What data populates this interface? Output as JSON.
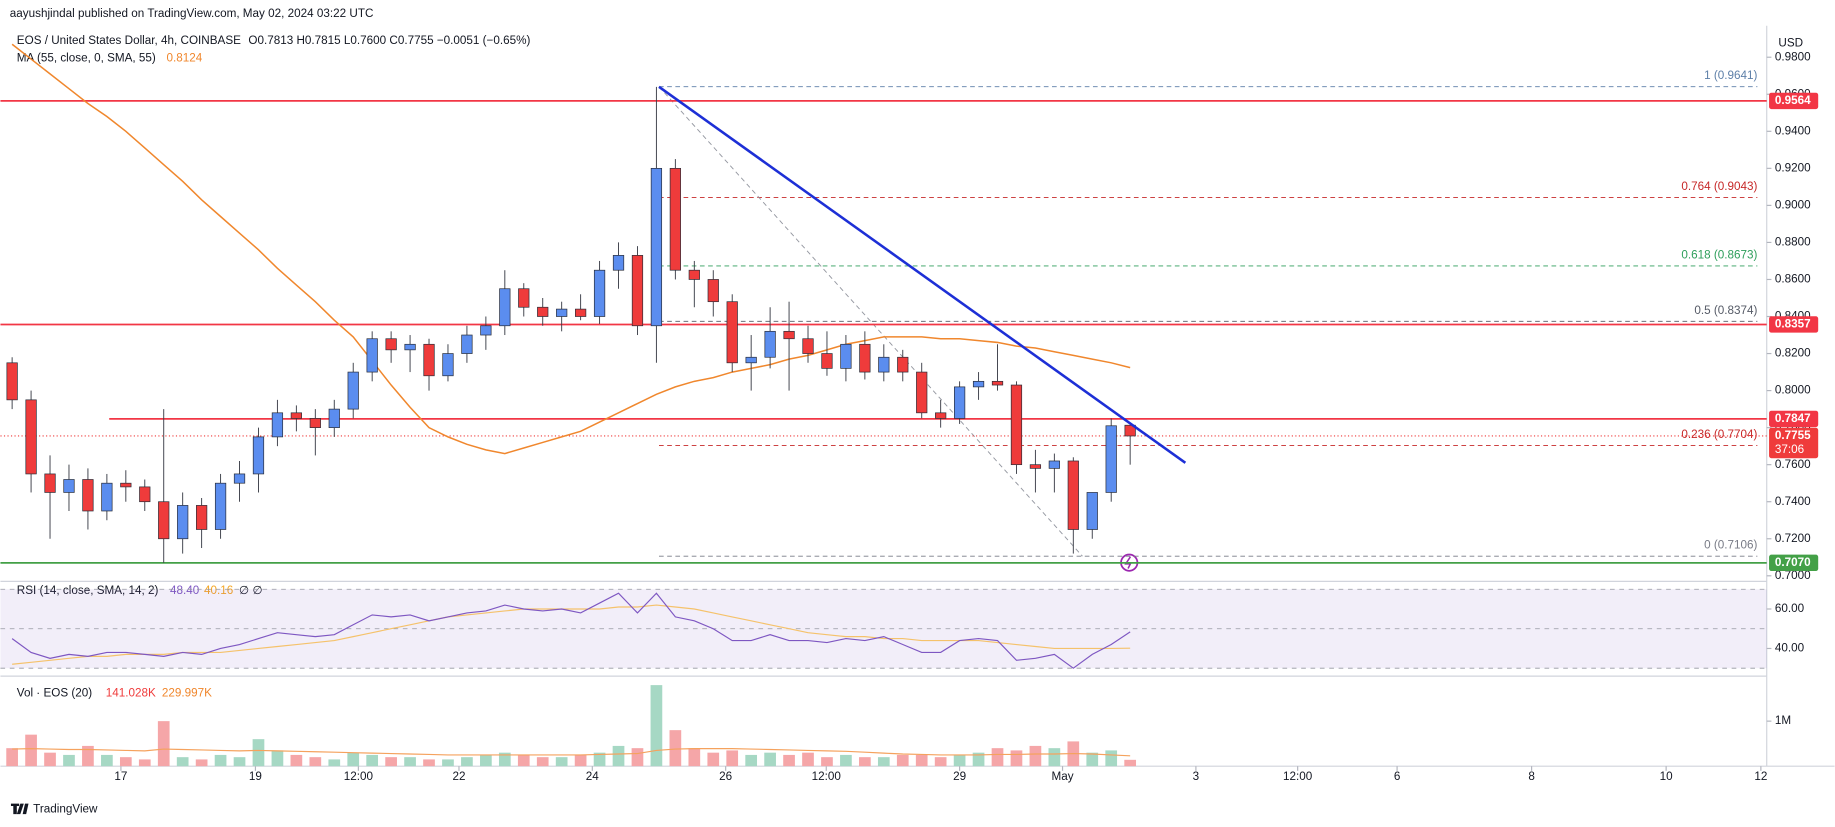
{
  "chart_data": {
    "type": "candlestick",
    "header": "aayushjindal published on TradingView.com, May 02, 2024 03:22 UTC",
    "symbol": "EOS / United States Dollar, 4h, COINBASE",
    "ohlc_text": "O0.7813 H0.7815 L0.7600 C0.7755 −0.0051 (−0.65%)",
    "ma_label": "MA (55, close, 0, SMA, 55)",
    "ma_legend_value": "0.8124",
    "currency": "USD",
    "up_color": "#5b8def",
    "down_color": "#ef3b3b",
    "ma_color": "#f0872d",
    "trend_color": "#1d2fd6",
    "open": [
      0.815,
      0.795,
      0.755,
      0.745,
      0.752,
      0.735,
      0.75,
      0.748,
      0.74,
      0.72,
      0.738,
      0.725,
      0.75,
      0.755,
      0.775,
      0.788,
      0.785,
      0.78,
      0.79,
      0.81,
      0.828,
      0.822,
      0.825,
      0.808,
      0.82,
      0.83,
      0.835,
      0.855,
      0.845,
      0.84,
      0.844,
      0.84,
      0.865,
      0.873,
      0.835,
      0.92,
      0.865,
      0.86,
      0.848,
      0.815,
      0.818,
      0.832,
      0.828,
      0.82,
      0.812,
      0.825,
      0.81,
      0.818,
      0.81,
      0.788,
      0.785,
      0.802,
      0.805,
      0.803,
      0.76,
      0.758,
      0.762,
      0.725,
      0.745,
      0.7813
    ],
    "high": [
      0.818,
      0.8,
      0.765,
      0.76,
      0.758,
      0.755,
      0.757,
      0.752,
      0.79,
      0.745,
      0.742,
      0.755,
      0.762,
      0.78,
      0.795,
      0.792,
      0.79,
      0.795,
      0.815,
      0.832,
      0.832,
      0.83,
      0.828,
      0.825,
      0.835,
      0.84,
      0.865,
      0.858,
      0.85,
      0.848,
      0.852,
      0.87,
      0.88,
      0.878,
      0.964,
      0.925,
      0.87,
      0.865,
      0.852,
      0.83,
      0.845,
      0.848,
      0.835,
      0.832,
      0.83,
      0.832,
      0.825,
      0.822,
      0.815,
      0.795,
      0.805,
      0.81,
      0.825,
      0.805,
      0.768,
      0.766,
      0.764,
      0.745,
      0.785,
      0.7815
    ],
    "low": [
      0.79,
      0.745,
      0.72,
      0.735,
      0.725,
      0.73,
      0.74,
      0.735,
      0.707,
      0.712,
      0.715,
      0.72,
      0.74,
      0.745,
      0.77,
      0.778,
      0.765,
      0.775,
      0.785,
      0.805,
      0.815,
      0.81,
      0.8,
      0.805,
      0.815,
      0.822,
      0.83,
      0.84,
      0.835,
      0.832,
      0.838,
      0.836,
      0.855,
      0.83,
      0.815,
      0.86,
      0.845,
      0.84,
      0.81,
      0.8,
      0.812,
      0.8,
      0.815,
      0.808,
      0.805,
      0.806,
      0.805,
      0.805,
      0.785,
      0.78,
      0.782,
      0.795,
      0.8,
      0.755,
      0.745,
      0.745,
      0.712,
      0.72,
      0.74,
      0.76
    ],
    "close": [
      0.795,
      0.755,
      0.745,
      0.752,
      0.735,
      0.75,
      0.748,
      0.74,
      0.72,
      0.738,
      0.725,
      0.75,
      0.755,
      0.775,
      0.788,
      0.785,
      0.78,
      0.79,
      0.81,
      0.828,
      0.822,
      0.825,
      0.808,
      0.82,
      0.83,
      0.835,
      0.855,
      0.845,
      0.84,
      0.844,
      0.84,
      0.865,
      0.873,
      0.835,
      0.92,
      0.865,
      0.86,
      0.848,
      0.815,
      0.818,
      0.832,
      0.828,
      0.82,
      0.812,
      0.825,
      0.81,
      0.818,
      0.81,
      0.788,
      0.785,
      0.802,
      0.805,
      0.803,
      0.76,
      0.758,
      0.762,
      0.725,
      0.745,
      0.781,
      0.7755
    ],
    "ma": [
      0.987,
      0.979,
      0.971,
      0.963,
      0.955,
      0.948,
      0.94,
      0.931,
      0.922,
      0.913,
      0.903,
      0.894,
      0.885,
      0.876,
      0.866,
      0.857,
      0.848,
      0.838,
      0.829,
      0.816,
      0.803,
      0.791,
      0.78,
      0.775,
      0.771,
      0.768,
      0.766,
      0.769,
      0.772,
      0.775,
      0.778,
      0.783,
      0.788,
      0.793,
      0.798,
      0.802,
      0.805,
      0.807,
      0.81,
      0.812,
      0.814,
      0.817,
      0.819,
      0.822,
      0.825,
      0.827,
      0.829,
      0.829,
      0.829,
      0.828,
      0.828,
      0.827,
      0.826,
      0.824,
      0.823,
      0.821,
      0.819,
      0.817,
      0.815,
      0.8124
    ],
    "ylim": [
      0.697,
      0.997
    ],
    "yticks": [
      {
        "value": 0.7,
        "label": "0.7000"
      },
      {
        "value": 0.72,
        "label": "0.7200"
      },
      {
        "value": 0.74,
        "label": "0.7400"
      },
      {
        "value": 0.76,
        "label": "0.7600"
      },
      {
        "value": 0.78,
        "label": "0.7800"
      },
      {
        "value": 0.8,
        "label": "0.8000"
      },
      {
        "value": 0.82,
        "label": "0.8200"
      },
      {
        "value": 0.84,
        "label": "0.8400"
      },
      {
        "value": 0.86,
        "label": "0.8600"
      },
      {
        "value": 0.88,
        "label": "0.8800"
      },
      {
        "value": 0.9,
        "label": "0.9000"
      },
      {
        "value": 0.92,
        "label": "0.9200"
      },
      {
        "value": 0.94,
        "label": "0.9400"
      },
      {
        "value": 0.96,
        "label": "0.9600"
      },
      {
        "value": 0.98,
        "label": "0.9800"
      }
    ],
    "levels": [
      {
        "value": 0.9564,
        "label": "0.9564",
        "color": "#f23645"
      },
      {
        "value": 0.8357,
        "label": "0.8357",
        "color": "#f23645"
      },
      {
        "value": 0.7847,
        "label": "0.7847",
        "color": "#f23645"
      },
      {
        "value": 0.707,
        "label": "0.7070",
        "color": "#43a047"
      }
    ],
    "current": {
      "value": 0.7755,
      "label": "0.7755",
      "timer": "37:06"
    },
    "fib": [
      {
        "value": 0.9641,
        "label": "1 (0.9641)",
        "color": "#5d7fa8"
      },
      {
        "value": 0.9043,
        "label": "0.764 (0.9043)",
        "color": "#c62828"
      },
      {
        "value": 0.8673,
        "label": "0.618 (0.8673)",
        "color": "#2e9e5b"
      },
      {
        "value": 0.8374,
        "label": "0.5 (0.8374)",
        "color": "#555a66"
      },
      {
        "value": 0.7704,
        "label": "0.236 (0.7704)",
        "color": "#c62828"
      },
      {
        "value": 0.7106,
        "label": "0 (0.7106)",
        "color": "#787b86"
      }
    ],
    "trendline": {
      "from": 0.964,
      "to": 0.761
    },
    "x_labels": [
      "17",
      "19",
      "12:00",
      "22",
      "24",
      "26",
      "12:00",
      "29",
      "May",
      "3",
      "12:00",
      "6",
      "8",
      "10",
      "12"
    ],
    "rsi_label": "RSI (14, close, SMA, 14, 2)",
    "rsi_value": "48.40",
    "rsi_ma_value": "40.16",
    "rsi_na": "∅ ∅",
    "rsi": [
      45,
      38,
      35,
      37,
      36,
      38,
      38,
      37,
      36,
      38,
      37,
      40,
      42,
      45,
      48,
      47,
      46,
      47,
      52,
      57,
      56,
      57,
      54,
      56,
      58,
      59,
      62,
      60,
      59,
      60,
      58,
      63,
      68,
      58,
      68,
      56,
      54,
      50,
      44,
      44,
      47,
      44,
      44,
      43,
      45,
      44,
      46,
      42,
      38,
      38,
      44,
      45,
      44,
      34,
      35,
      37,
      30,
      37,
      42,
      48.4
    ],
    "rsi_ma": [
      32,
      33,
      34,
      35,
      36,
      36,
      37,
      37,
      37,
      38,
      38,
      38,
      39,
      40,
      41,
      42,
      43,
      44,
      46,
      48,
      50,
      52,
      54,
      56,
      57,
      58,
      59,
      60,
      60,
      60,
      60,
      60,
      61,
      61,
      62,
      61,
      60,
      58,
      56,
      54,
      52,
      50,
      48,
      47,
      46,
      46,
      45,
      45,
      44,
      44,
      44,
      44,
      43,
      42,
      41,
      40,
      40,
      40,
      40,
      40.16
    ],
    "rsi_ylim": [
      26,
      74
    ],
    "rsi_yticks": [
      {
        "value": 40,
        "label": "40.00"
      },
      {
        "value": 60,
        "label": "60.00"
      }
    ],
    "rsi_levels": [
      70,
      50,
      30
    ],
    "vol_label": "Vol · EOS (20)",
    "vol_value": "141.028K",
    "vol_ma_value": "229.997K",
    "volume": [
      400000,
      700000,
      300000,
      250000,
      450000,
      250000,
      200000,
      150000,
      1000000,
      200000,
      150000,
      250000,
      200000,
      600000,
      350000,
      250000,
      200000,
      150000,
      300000,
      250000,
      200000,
      200000,
      150000,
      150000,
      200000,
      250000,
      300000,
      250000,
      200000,
      200000,
      250000,
      300000,
      450000,
      400000,
      1800000,
      800000,
      400000,
      300000,
      350000,
      250000,
      300000,
      250000,
      300000,
      200000,
      250000,
      200000,
      200000,
      250000,
      250000,
      200000,
      250000,
      300000,
      400000,
      350000,
      450000,
      400000,
      550000,
      300000,
      350000,
      141028
    ],
    "vol_ma": [
      380000,
      390000,
      380000,
      370000,
      370000,
      360000,
      350000,
      340000,
      380000,
      370000,
      360000,
      350000,
      340000,
      350000,
      340000,
      330000,
      320000,
      310000,
      300000,
      290000,
      280000,
      270000,
      260000,
      250000,
      250000,
      250000,
      250000,
      250000,
      250000,
      250000,
      250000,
      260000,
      270000,
      280000,
      350000,
      380000,
      390000,
      390000,
      390000,
      380000,
      370000,
      360000,
      350000,
      340000,
      330000,
      310000,
      290000,
      270000,
      260000,
      250000,
      250000,
      250000,
      260000,
      260000,
      270000,
      270000,
      280000,
      270000,
      250000,
      229997
    ],
    "vol_ylim": [
      0,
      2000000
    ],
    "vol_yticks": [
      {
        "value": 1000000,
        "label": "1M"
      }
    ],
    "footer": "TradingView"
  }
}
